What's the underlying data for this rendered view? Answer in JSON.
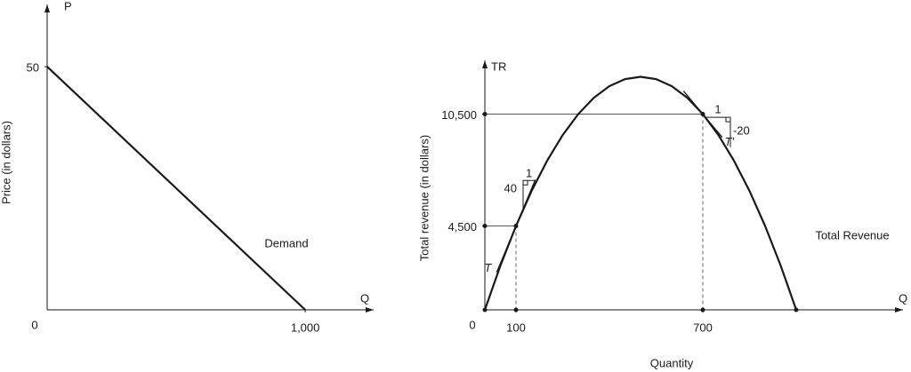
{
  "chart_data": [
    {
      "type": "line",
      "y_label": "P",
      "x_label": "Q",
      "y_title": "Price (in dollars)",
      "x": [
        0,
        1000
      ],
      "series": [
        {
          "name": "Demand",
          "color": "#1a1a1a",
          "values": [
            50,
            0
          ]
        }
      ],
      "xlim": [
        0,
        1265
      ],
      "ylim": [
        0,
        62.8
      ],
      "xticks": [
        0,
        {
          "value": 1000,
          "label": "1,000"
        }
      ],
      "yticks": [
        50
      ]
    },
    {
      "type": "line",
      "y_label": "TR",
      "x_label": "Q",
      "y_title": "Total revenue (in dollars)",
      "x_title": "Quantity",
      "x": [
        0,
        50,
        100,
        150,
        200,
        250,
        300,
        350,
        400,
        450,
        500,
        550,
        600,
        650,
        700,
        750,
        800,
        850,
        900,
        950,
        1000
      ],
      "series": [
        {
          "name": "Total Revenue",
          "color": "#1a1a1a",
          "values": [
            0,
            2375,
            4500,
            6375,
            8000,
            9375,
            10500,
            11375,
            12000,
            12375,
            12500,
            12375,
            12000,
            11375,
            10500,
            9375,
            8000,
            6375,
            4500,
            2375,
            0
          ]
        }
      ],
      "xlim": [
        0,
        1343
      ],
      "ylim": [
        0,
        13380
      ],
      "xticks": [
        0,
        100,
        700
      ],
      "yticks": [
        {
          "value": 4500,
          "label": "4,500"
        },
        {
          "value": 10500,
          "label": "10,500"
        }
      ],
      "tangents": [
        {
          "label": "T",
          "x": 100,
          "run": 1,
          "slope": 40
        },
        {
          "label": "T'",
          "x": 700,
          "run": 1,
          "slope": -20
        }
      ]
    }
  ]
}
